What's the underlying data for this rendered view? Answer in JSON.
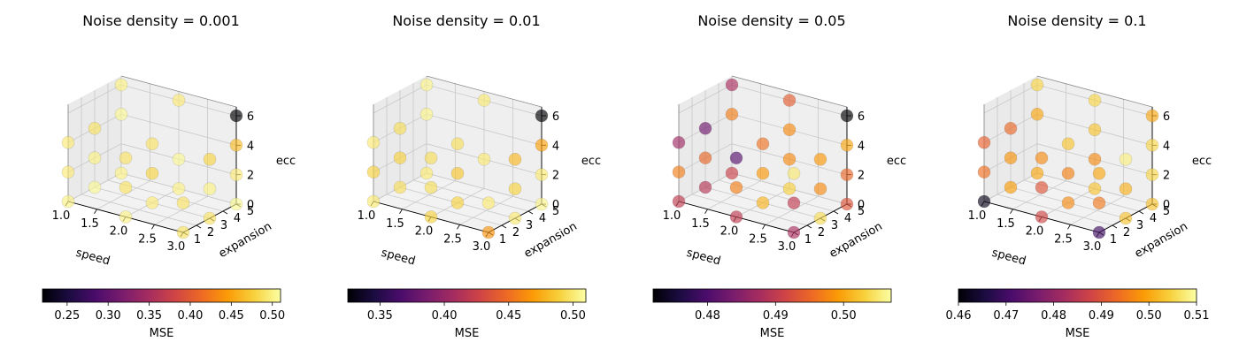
{
  "figure": {
    "colormap": "inferno",
    "colormap_stops": [
      "#000004",
      "#1b0c41",
      "#4a0c6b",
      "#781c6d",
      "#a52c60",
      "#cf4446",
      "#ed6925",
      "#fb9b06",
      "#f7d13d",
      "#fcffa4"
    ],
    "pane_color": "#f2f2f2",
    "grid_color": "#c8c8c8",
    "point_alpha": 0.65
  },
  "chart_data": [
    {
      "type": "scatter3d",
      "title": "Noise density = 0.001",
      "xlabel": "speed",
      "ylabel": "expansion",
      "zlabel": "ecc",
      "xticks": [
        "1.0",
        "1.5",
        "2.0",
        "2.5",
        "3.0"
      ],
      "yticks": [
        "1",
        "2",
        "3",
        "4",
        "5"
      ],
      "zticks": [
        "0",
        "2",
        "4",
        "6"
      ],
      "colorbar": {
        "label": "MSE",
        "range": [
          0.22,
          0.51
        ],
        "ticks": [
          "0.25",
          "0.30",
          "0.35",
          "0.40",
          "0.45",
          "0.50"
        ],
        "tick_values": [
          0.25,
          0.3,
          0.35,
          0.4,
          0.45,
          0.5
        ]
      },
      "points": [
        {
          "x": 3.0,
          "y": 5,
          "z": 6,
          "mse": 0.22
        },
        {
          "x": 3.0,
          "y": 5,
          "z": 4,
          "mse": 0.465
        },
        {
          "x": 3.0,
          "y": 5,
          "z": 2,
          "mse": 0.495
        },
        {
          "x": 3.0,
          "y": 5,
          "z": 0,
          "mse": 0.505
        },
        {
          "x": 3.0,
          "y": 3,
          "z": 0,
          "mse": 0.49
        },
        {
          "x": 3.0,
          "y": 1,
          "z": 0,
          "mse": 0.49
        },
        {
          "x": 3.0,
          "y": 3,
          "z": 2,
          "mse": 0.5
        },
        {
          "x": 3.0,
          "y": 3,
          "z": 4,
          "mse": 0.48
        },
        {
          "x": 2.0,
          "y": 5,
          "z": 6,
          "mse": 0.495
        },
        {
          "x": 2.0,
          "y": 3,
          "z": 4,
          "mse": 0.49
        },
        {
          "x": 2.0,
          "y": 3,
          "z": 2,
          "mse": 0.48
        },
        {
          "x": 2.0,
          "y": 1,
          "z": 0,
          "mse": 0.5
        },
        {
          "x": 2.0,
          "y": 1,
          "z": 2,
          "mse": 0.49
        },
        {
          "x": 2.0,
          "y": 5,
          "z": 2,
          "mse": 0.505
        },
        {
          "x": 2.0,
          "y": 5,
          "z": 0,
          "mse": 0.5
        },
        {
          "x": 1.0,
          "y": 5,
          "z": 6,
          "mse": 0.5
        },
        {
          "x": 1.0,
          "y": 3,
          "z": 4,
          "mse": 0.49
        },
        {
          "x": 1.0,
          "y": 3,
          "z": 2,
          "mse": 0.5
        },
        {
          "x": 1.0,
          "y": 1,
          "z": 4,
          "mse": 0.495
        },
        {
          "x": 1.0,
          "y": 1,
          "z": 2,
          "mse": 0.495
        },
        {
          "x": 1.0,
          "y": 1,
          "z": 0,
          "mse": 0.5
        },
        {
          "x": 1.0,
          "y": 3,
          "z": 0,
          "mse": 0.505
        },
        {
          "x": 1.0,
          "y": 5,
          "z": 0,
          "mse": 0.5
        },
        {
          "x": 1.0,
          "y": 5,
          "z": 4,
          "mse": 0.505
        },
        {
          "x": 2.0,
          "y": 1,
          "z": 4,
          "mse": 0.49
        },
        {
          "x": 3.0,
          "y": 1,
          "z": 2,
          "mse": 0.49
        },
        {
          "x": 2.0,
          "y": 3,
          "z": 0,
          "mse": 0.495
        }
      ]
    },
    {
      "type": "scatter3d",
      "title": "Noise density = 0.01",
      "xlabel": "speed",
      "ylabel": "expansion",
      "zlabel": "ecc",
      "xticks": [
        "1.0",
        "1.5",
        "2.0",
        "2.5",
        "3.0"
      ],
      "yticks": [
        "1",
        "2",
        "3",
        "4",
        "5"
      ],
      "zticks": [
        "0",
        "2",
        "4",
        "6"
      ],
      "colorbar": {
        "label": "MSE",
        "range": [
          0.325,
          0.51
        ],
        "ticks": [
          "0.35",
          "0.40",
          "0.45",
          "0.50"
        ],
        "tick_values": [
          0.35,
          0.4,
          0.45,
          0.5
        ]
      },
      "points": [
        {
          "x": 3.0,
          "y": 5,
          "z": 6,
          "mse": 0.325
        },
        {
          "x": 3.0,
          "y": 5,
          "z": 4,
          "mse": 0.47
        },
        {
          "x": 3.0,
          "y": 5,
          "z": 2,
          "mse": 0.5
        },
        {
          "x": 3.0,
          "y": 5,
          "z": 0,
          "mse": 0.505
        },
        {
          "x": 3.0,
          "y": 3,
          "z": 4,
          "mse": 0.48
        },
        {
          "x": 3.0,
          "y": 3,
          "z": 2,
          "mse": 0.49
        },
        {
          "x": 3.0,
          "y": 3,
          "z": 0,
          "mse": 0.5
        },
        {
          "x": 3.0,
          "y": 1,
          "z": 0,
          "mse": 0.465
        },
        {
          "x": 2.0,
          "y": 5,
          "z": 6,
          "mse": 0.5
        },
        {
          "x": 2.0,
          "y": 3,
          "z": 4,
          "mse": 0.495
        },
        {
          "x": 2.0,
          "y": 3,
          "z": 2,
          "mse": 0.485
        },
        {
          "x": 2.0,
          "y": 3,
          "z": 0,
          "mse": 0.49
        },
        {
          "x": 2.0,
          "y": 1,
          "z": 0,
          "mse": 0.49
        },
        {
          "x": 2.0,
          "y": 1,
          "z": 2,
          "mse": 0.495
        },
        {
          "x": 2.0,
          "y": 5,
          "z": 2,
          "mse": 0.5
        },
        {
          "x": 1.0,
          "y": 5,
          "z": 6,
          "mse": 0.505
        },
        {
          "x": 1.0,
          "y": 3,
          "z": 4,
          "mse": 0.495
        },
        {
          "x": 1.0,
          "y": 3,
          "z": 2,
          "mse": 0.49
        },
        {
          "x": 1.0,
          "y": 1,
          "z": 4,
          "mse": 0.5
        },
        {
          "x": 1.0,
          "y": 1,
          "z": 2,
          "mse": 0.49
        },
        {
          "x": 1.0,
          "y": 1,
          "z": 0,
          "mse": 0.5
        },
        {
          "x": 1.0,
          "y": 3,
          "z": 0,
          "mse": 0.495
        },
        {
          "x": 1.0,
          "y": 5,
          "z": 0,
          "mse": 0.5
        },
        {
          "x": 1.0,
          "y": 5,
          "z": 4,
          "mse": 0.505
        },
        {
          "x": 2.0,
          "y": 1,
          "z": 4,
          "mse": 0.495
        },
        {
          "x": 3.0,
          "y": 1,
          "z": 2,
          "mse": 0.5
        }
      ]
    },
    {
      "type": "scatter3d",
      "title": "Noise density = 0.05",
      "xlabel": "speed",
      "ylabel": "expansion",
      "zlabel": "ecc",
      "xticks": [
        "1.0",
        "1.5",
        "2.0",
        "2.5",
        "3.0"
      ],
      "yticks": [
        "1",
        "2",
        "3",
        "4",
        "5"
      ],
      "zticks": [
        "0",
        "2",
        "4",
        "6"
      ],
      "colorbar": {
        "label": "MSE",
        "range": [
          0.472,
          0.507
        ],
        "ticks": [
          "0.48",
          "0.49",
          "0.50"
        ],
        "tick_values": [
          0.48,
          0.49,
          0.5
        ]
      },
      "points": [
        {
          "x": 3.0,
          "y": 5,
          "z": 6,
          "mse": 0.472
        },
        {
          "x": 3.0,
          "y": 5,
          "z": 4,
          "mse": 0.5
        },
        {
          "x": 3.0,
          "y": 5,
          "z": 2,
          "mse": 0.495
        },
        {
          "x": 3.0,
          "y": 5,
          "z": 0,
          "mse": 0.493
        },
        {
          "x": 3.0,
          "y": 3,
          "z": 4,
          "mse": 0.499
        },
        {
          "x": 3.0,
          "y": 3,
          "z": 2,
          "mse": 0.498
        },
        {
          "x": 3.0,
          "y": 3,
          "z": 0,
          "mse": 0.504
        },
        {
          "x": 3.0,
          "y": 1,
          "z": 0,
          "mse": 0.488
        },
        {
          "x": 3.0,
          "y": 1,
          "z": 2,
          "mse": 0.49
        },
        {
          "x": 2.0,
          "y": 5,
          "z": 6,
          "mse": 0.494
        },
        {
          "x": 2.0,
          "y": 5,
          "z": 4,
          "mse": 0.498
        },
        {
          "x": 2.0,
          "y": 5,
          "z": 2,
          "mse": 0.498
        },
        {
          "x": 2.0,
          "y": 3,
          "z": 4,
          "mse": 0.496
        },
        {
          "x": 2.0,
          "y": 3,
          "z": 2,
          "mse": 0.499
        },
        {
          "x": 2.0,
          "y": 3,
          "z": 0,
          "mse": 0.501
        },
        {
          "x": 2.0,
          "y": 1,
          "z": 0,
          "mse": 0.49
        },
        {
          "x": 2.0,
          "y": 1,
          "z": 2,
          "mse": 0.497
        },
        {
          "x": 1.0,
          "y": 5,
          "z": 6,
          "mse": 0.488
        },
        {
          "x": 1.0,
          "y": 5,
          "z": 4,
          "mse": 0.497
        },
        {
          "x": 1.0,
          "y": 3,
          "z": 4,
          "mse": 0.483
        },
        {
          "x": 1.0,
          "y": 3,
          "z": 2,
          "mse": 0.495
        },
        {
          "x": 1.0,
          "y": 1,
          "z": 4,
          "mse": 0.487
        },
        {
          "x": 1.0,
          "y": 1,
          "z": 2,
          "mse": 0.497
        },
        {
          "x": 1.0,
          "y": 1,
          "z": 0,
          "mse": 0.49
        },
        {
          "x": 1.0,
          "y": 3,
          "z": 0,
          "mse": 0.489
        },
        {
          "x": 1.0,
          "y": 5,
          "z": 0,
          "mse": 0.491
        },
        {
          "x": 2.0,
          "y": 1,
          "z": 4,
          "mse": 0.481
        },
        {
          "x": 3.0,
          "y": 1,
          "z": 4,
          "mse": 0.505
        },
        {
          "x": 2.0,
          "y": 5,
          "z": 0,
          "mse": 0.503
        }
      ]
    },
    {
      "type": "scatter3d",
      "title": "Noise density = 0.1",
      "xlabel": "speed",
      "ylabel": "expansion",
      "zlabel": "ecc",
      "xticks": [
        "1.0",
        "1.5",
        "2.0",
        "2.5",
        "3.0"
      ],
      "yticks": [
        "1",
        "2",
        "3",
        "4",
        "5"
      ],
      "zticks": [
        "0",
        "2",
        "4",
        "6"
      ],
      "colorbar": {
        "label": "MSE",
        "range": [
          0.46,
          0.51
        ],
        "ticks": [
          "0.46",
          "0.47",
          "0.48",
          "0.49",
          "0.50",
          "0.51"
        ],
        "tick_values": [
          0.46,
          0.47,
          0.48,
          0.49,
          0.5,
          0.51
        ]
      },
      "points": [
        {
          "x": 3.0,
          "y": 5,
          "z": 6,
          "mse": 0.5
        },
        {
          "x": 3.0,
          "y": 5,
          "z": 4,
          "mse": 0.505
        },
        {
          "x": 3.0,
          "y": 5,
          "z": 2,
          "mse": 0.505
        },
        {
          "x": 3.0,
          "y": 5,
          "z": 0,
          "mse": 0.503
        },
        {
          "x": 3.0,
          "y": 3,
          "z": 4,
          "mse": 0.508
        },
        {
          "x": 3.0,
          "y": 3,
          "z": 2,
          "mse": 0.501
        },
        {
          "x": 3.0,
          "y": 3,
          "z": 0,
          "mse": 0.503
        },
        {
          "x": 3.0,
          "y": 1,
          "z": 0,
          "mse": 0.47
        },
        {
          "x": 3.0,
          "y": 1,
          "z": 2,
          "mse": 0.495
        },
        {
          "x": 2.0,
          "y": 5,
          "z": 6,
          "mse": 0.505
        },
        {
          "x": 2.0,
          "y": 5,
          "z": 4,
          "mse": 0.503
        },
        {
          "x": 2.0,
          "y": 5,
          "z": 2,
          "mse": 0.497
        },
        {
          "x": 2.0,
          "y": 3,
          "z": 4,
          "mse": 0.503
        },
        {
          "x": 2.0,
          "y": 3,
          "z": 2,
          "mse": 0.496
        },
        {
          "x": 2.0,
          "y": 3,
          "z": 0,
          "mse": 0.497
        },
        {
          "x": 2.0,
          "y": 1,
          "z": 0,
          "mse": 0.488
        },
        {
          "x": 2.0,
          "y": 1,
          "z": 2,
          "mse": 0.49
        },
        {
          "x": 1.0,
          "y": 5,
          "z": 6,
          "mse": 0.505
        },
        {
          "x": 1.0,
          "y": 5,
          "z": 4,
          "mse": 0.5
        },
        {
          "x": 1.0,
          "y": 3,
          "z": 4,
          "mse": 0.493
        },
        {
          "x": 1.0,
          "y": 3,
          "z": 2,
          "mse": 0.498
        },
        {
          "x": 1.0,
          "y": 1,
          "z": 4,
          "mse": 0.492
        },
        {
          "x": 1.0,
          "y": 1,
          "z": 2,
          "mse": 0.494
        },
        {
          "x": 1.0,
          "y": 1,
          "z": 0,
          "mse": 0.462
        },
        {
          "x": 1.0,
          "y": 3,
          "z": 0,
          "mse": 0.499
        },
        {
          "x": 1.0,
          "y": 5,
          "z": 0,
          "mse": 0.5
        },
        {
          "x": 2.0,
          "y": 1,
          "z": 4,
          "mse": 0.497
        },
        {
          "x": 3.0,
          "y": 1,
          "z": 4,
          "mse": 0.5
        },
        {
          "x": 2.0,
          "y": 5,
          "z": 0,
          "mse": 0.503
        }
      ]
    }
  ]
}
